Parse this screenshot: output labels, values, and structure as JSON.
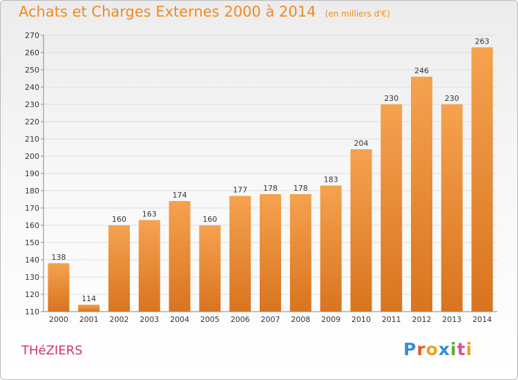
{
  "page": {
    "commune": "THéZIERS",
    "logo": {
      "text": "Proxiti",
      "colors": [
        "#3a8ed0",
        "#e55a2a",
        "#f0a020",
        "#3a8ed0",
        "#55b030",
        "#e05090",
        "#f0a020"
      ]
    }
  },
  "chart_data": {
    "type": "bar",
    "title": "Achats et Charges Externes 2000 à 2014",
    "subtitle": "(en milliers d'€)",
    "xlabel": "",
    "ylabel": "",
    "categories": [
      "2000",
      "2001",
      "2002",
      "2003",
      "2004",
      "2005",
      "2006",
      "2007",
      "2008",
      "2009",
      "2010",
      "2011",
      "2012",
      "2013",
      "2014"
    ],
    "values": [
      138,
      114,
      160,
      163,
      174,
      160,
      177,
      178,
      178,
      183,
      204,
      230,
      246,
      230,
      263
    ],
    "ylim": [
      110,
      270
    ],
    "yticks": [
      110,
      120,
      130,
      140,
      150,
      160,
      170,
      180,
      190,
      200,
      210,
      220,
      230,
      240,
      250,
      260,
      270
    ],
    "grid": true,
    "colors": {
      "bar_top": "#f5a24f",
      "bar_bottom": "#d9741f",
      "grid": "#dcdcdc",
      "axis": "#888888"
    }
  }
}
